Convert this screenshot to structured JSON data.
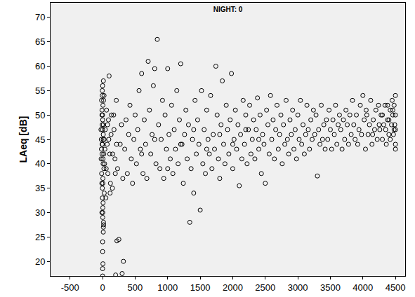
{
  "chart_data": {
    "type": "scatter",
    "title": "NIGHT: 0",
    "y_label": "LAeq [dB]",
    "color": "#000000",
    "marker": "circle-open",
    "grid": false,
    "xlim": [
      -800,
      4650
    ],
    "ylim": [
      17,
      73
    ],
    "xticks": [
      -500,
      0,
      500,
      1000,
      1500,
      2000,
      2500,
      3000,
      3500,
      4000,
      4500
    ],
    "yticks": [
      20,
      25,
      30,
      35,
      40,
      45,
      50,
      55,
      60,
      65,
      70
    ],
    "x": [
      -20,
      -15,
      -10,
      -8,
      -5,
      -3,
      0,
      2,
      5,
      8,
      -12,
      -6,
      -2,
      0,
      3,
      6,
      10,
      12,
      15,
      20,
      -18,
      -9,
      -4,
      1,
      4,
      9,
      14,
      18,
      22,
      25,
      0,
      0,
      0,
      0,
      5,
      10,
      3,
      7,
      12,
      -5,
      30,
      40,
      50,
      60,
      70,
      80,
      90,
      100,
      110,
      120,
      130,
      150,
      170,
      190,
      210,
      230,
      250,
      270,
      290,
      310,
      300,
      320,
      200,
      220,
      340,
      360,
      380,
      400,
      420,
      440,
      460,
      480,
      500,
      520,
      540,
      560,
      580,
      600,
      620,
      640,
      660,
      680,
      700,
      720,
      740,
      760,
      780,
      800,
      820,
      840,
      860,
      880,
      900,
      920,
      940,
      960,
      980,
      1000,
      1020,
      1040,
      1060,
      1080,
      1100,
      1120,
      1140,
      1160,
      1180,
      1200,
      1220,
      1240,
      1260,
      1280,
      1300,
      1320,
      1340,
      1360,
      1380,
      1400,
      1420,
      1440,
      1460,
      1480,
      1500,
      1520,
      1540,
      1560,
      1580,
      1600,
      1620,
      1640,
      1660,
      1680,
      1700,
      1720,
      1740,
      1760,
      1780,
      1800,
      1820,
      1840,
      1860,
      1880,
      1900,
      1920,
      1940,
      1960,
      1980,
      2000,
      2020,
      2040,
      2060,
      2080,
      2100,
      2120,
      2140,
      2160,
      2180,
      2200,
      2220,
      2240,
      2260,
      2280,
      2300,
      2320,
      2340,
      2360,
      2380,
      2400,
      2420,
      2440,
      2460,
      2480,
      2500,
      2520,
      2540,
      2560,
      2580,
      2600,
      2620,
      2640,
      2660,
      2680,
      2700,
      2720,
      2740,
      2760,
      2780,
      2800,
      2820,
      2840,
      2860,
      2880,
      2900,
      2920,
      2940,
      2960,
      2980,
      3000,
      3020,
      3040,
      3060,
      3080,
      3100,
      3120,
      3140,
      3160,
      3180,
      3200,
      3220,
      3240,
      3260,
      3280,
      3300,
      3320,
      3340,
      3360,
      3380,
      3400,
      3420,
      3440,
      3460,
      3480,
      3500,
      3520,
      3540,
      3560,
      3580,
      3600,
      3620,
      3640,
      3660,
      3680,
      3700,
      3720,
      3740,
      3760,
      3780,
      3800,
      3820,
      3840,
      3860,
      3880,
      3900,
      3920,
      3940,
      3960,
      3980,
      4000,
      4020,
      4040,
      4060,
      4080,
      4100,
      4120,
      4140,
      4160,
      4180,
      4200,
      4220,
      4240,
      4260,
      4280,
      4300,
      4320,
      4340,
      4360,
      4380,
      4400,
      4420,
      4440,
      4450,
      4460,
      4470,
      4480,
      4490,
      4500,
      4500,
      4500,
      4500,
      4500,
      -25,
      -22,
      -16,
      -11,
      -7,
      -1,
      4,
      11,
      16,
      24,
      35,
      55,
      75,
      95,
      115,
      135,
      155,
      175,
      195,
      215,
      4300,
      4350,
      4400,
      4420,
      4460,
      4480,
      4380,
      4250,
      4150,
      4050,
      600,
      800,
      1000,
      1200,
      1400,
      1600,
      1800,
      2000,
      2200,
      2400
    ],
    "values": [
      45,
      38,
      50,
      42,
      55,
      33,
      47,
      29,
      52,
      40,
      36,
      48,
      44,
      56,
      31,
      41,
      46,
      27,
      53,
      39,
      43,
      51,
      35,
      49,
      37,
      45,
      28,
      42,
      54,
      34,
      17,
      18.5,
      22,
      24,
      19.5,
      26,
      30,
      32,
      57,
      54,
      40,
      47,
      33,
      51,
      44,
      38,
      49,
      58,
      42,
      36,
      46,
      35,
      50,
      41,
      53,
      39,
      24.5,
      44,
      48,
      37,
      17.5,
      20,
      17.2,
      24.2,
      43,
      49,
      38,
      46,
      52,
      41,
      36,
      45,
      50,
      40,
      47,
      55,
      43,
      58.5,
      38,
      49,
      44,
      37,
      61,
      51,
      42,
      46,
      56,
      59.5,
      40,
      65.5,
      48,
      39,
      45,
      53,
      37,
      50,
      43,
      59.5,
      46,
      41,
      52,
      38,
      47,
      43,
      55,
      40,
      49,
      60.5,
      44,
      36,
      46,
      51,
      41,
      48,
      28,
      39,
      45,
      34,
      53,
      42,
      49,
      44,
      30.5,
      55,
      40,
      47,
      38,
      51,
      45,
      42,
      54,
      39,
      46,
      43,
      60,
      50,
      41,
      37,
      48,
      57,
      44,
      40,
      52,
      47,
      42,
      49,
      58.5,
      39,
      45,
      51,
      43,
      48,
      35.5,
      46,
      41,
      53,
      44,
      50,
      40,
      47,
      52,
      42,
      45,
      49,
      41,
      47,
      53.5,
      43,
      50,
      38,
      46,
      44,
      36,
      51,
      48,
      42,
      54,
      45,
      49,
      41,
      47,
      52,
      43,
      46,
      50,
      40,
      48,
      44,
      53,
      45,
      42,
      49,
      46,
      51,
      43,
      47,
      41,
      50,
      45,
      53,
      44,
      48,
      42,
      46,
      52,
      47,
      43,
      49,
      45,
      51,
      46,
      50,
      37.5,
      47,
      44,
      52,
      45,
      48,
      43,
      49,
      45,
      51,
      47,
      43,
      49,
      46,
      52,
      44,
      48,
      50,
      47,
      43,
      49,
      45,
      51,
      48,
      44,
      50,
      46,
      53,
      48,
      45,
      50,
      44,
      47,
      52,
      46,
      54,
      49,
      43,
      50,
      46,
      48,
      53,
      44,
      49,
      47,
      51,
      45,
      52,
      47,
      50,
      45,
      48,
      52,
      44,
      49,
      46,
      51,
      48,
      53,
      50,
      46,
      52,
      48,
      54,
      44,
      50,
      47,
      43,
      47,
      41,
      53,
      30,
      44,
      50,
      36,
      48,
      27.5,
      45,
      43,
      39,
      48,
      45,
      34,
      50,
      42,
      47,
      38,
      44,
      50,
      47,
      49,
      45,
      51,
      47,
      52,
      48,
      46,
      51,
      42,
      45,
      39,
      44,
      47,
      43,
      46,
      44,
      47,
      45
    ]
  }
}
